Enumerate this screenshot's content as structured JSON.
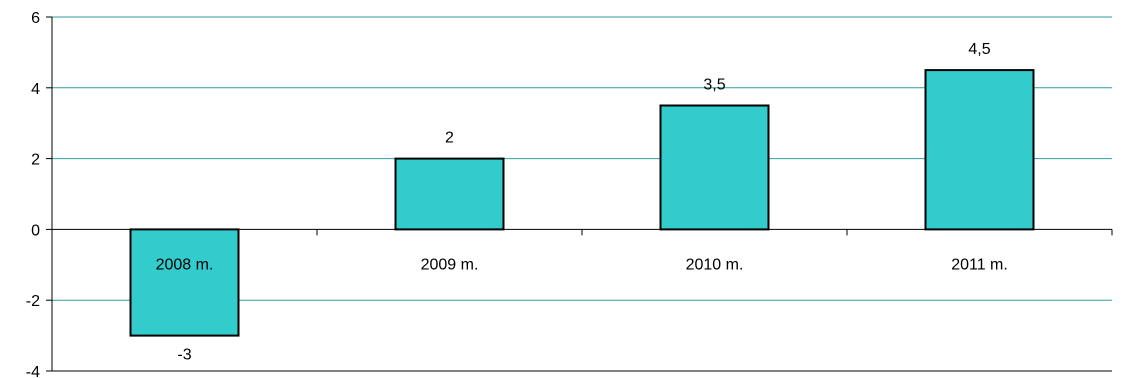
{
  "chart_data": {
    "type": "bar",
    "categories": [
      "2008 m.",
      "2009 m.",
      "2010 m.",
      "2011 m."
    ],
    "values": [
      -3,
      2,
      3.5,
      4.5
    ],
    "data_labels": [
      "-3",
      "2",
      "3,5",
      "4,5"
    ],
    "ylim": [
      -4,
      6
    ],
    "yticks": [
      -4,
      -2,
      0,
      2,
      4,
      6
    ],
    "ytick_labels": [
      "-4",
      "-2",
      "0",
      "2",
      "4",
      "6"
    ],
    "grid": true,
    "title": "",
    "xlabel": "",
    "ylabel": ""
  },
  "colors": {
    "bar_fill": "#33CCCC",
    "bar_stroke": "#000000",
    "grid": "#2E9E9E",
    "axis": "#000000"
  }
}
